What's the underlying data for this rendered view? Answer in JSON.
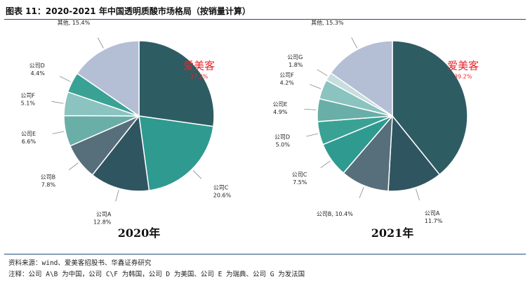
{
  "title": "图表 11：2020-2021 年中国透明质酸市场格局（按销量计算）",
  "notes": {
    "source": "资料来源：wind、爱美客招股书、华鑫证券研究",
    "remark": "注释：公司 A\\B 为中国，公司 C\\F 为韩国，公司 D 为美国、公司 E 为瑞典、公司 G 为发法国"
  },
  "chart_data": [
    {
      "type": "pie",
      "title": "2020年",
      "slices": [
        {
          "label": "爱美客",
          "pct_label": "27.2%",
          "value": 27.2,
          "color": "#2e5c63",
          "highlight": true
        },
        {
          "label": "公司C",
          "pct_label": "20.6%",
          "value": 20.6,
          "color": "#2f9a8f"
        },
        {
          "label": "公司A",
          "pct_label": "12.8%",
          "value": 12.8,
          "color": "#2f5561"
        },
        {
          "label": "公司B",
          "pct_label": "7.8%",
          "value": 7.8,
          "color": "#566f7a"
        },
        {
          "label": "公司E",
          "pct_label": "6.6%",
          "value": 6.6,
          "color": "#6aaea8"
        },
        {
          "label": "公司F",
          "pct_label": "5.1%",
          "value": 5.1,
          "color": "#8ac3bf"
        },
        {
          "label": "公司D",
          "pct_label": "4.4%",
          "value": 4.4,
          "color": "#3aa295"
        },
        {
          "label": "其他",
          "pct_label": "15.4%",
          "value": 15.4,
          "color": "#b4bfd6"
        }
      ]
    },
    {
      "type": "pie",
      "title": "2021年",
      "slices": [
        {
          "label": "爱美客",
          "pct_label": "39.2%",
          "value": 39.2,
          "color": "#2e5c63",
          "highlight": true
        },
        {
          "label": "公司A",
          "pct_label": "11.7%",
          "value": 11.7,
          "color": "#2f5561"
        },
        {
          "label": "公司B",
          "pct_label": "10.4%",
          "value": 10.4,
          "color": "#566f7a"
        },
        {
          "label": "公司C",
          "pct_label": "7.5%",
          "value": 7.5,
          "color": "#2f9a8f"
        },
        {
          "label": "公司D",
          "pct_label": "5.0%",
          "value": 5.0,
          "color": "#3aa295"
        },
        {
          "label": "公司E",
          "pct_label": "4.9%",
          "value": 4.9,
          "color": "#6aaea8"
        },
        {
          "label": "公司F",
          "pct_label": "4.2%",
          "value": 4.2,
          "color": "#8ac3bf"
        },
        {
          "label": "公司G",
          "pct_label": "1.8%",
          "value": 1.8,
          "color": "#c6dedd"
        },
        {
          "label": "其他",
          "pct_label": "15.3%",
          "value": 15.3,
          "color": "#b4bfd6"
        }
      ]
    }
  ],
  "colors": {
    "highlight_label": "#e8242a",
    "leader_line": "#888888",
    "rule": "#1f4e79"
  }
}
